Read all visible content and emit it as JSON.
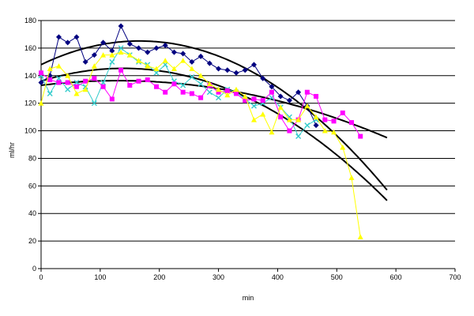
{
  "chart_data": {
    "type": "line",
    "xlabel": "min",
    "ylabel": "ml/hr",
    "xlim": [
      0,
      700
    ],
    "ylim": [
      0,
      180
    ],
    "x_ticks": [
      "0",
      "100",
      "200",
      "300",
      "400",
      "500",
      "600",
      "700"
    ],
    "y_ticks": [
      "0",
      "20",
      "40",
      "60",
      "80",
      "100",
      "120",
      "140",
      "160",
      "180"
    ],
    "grid": "horizontal",
    "legend": "none",
    "series": [
      {
        "color": "#000080",
        "marker": "diamond",
        "points": [
          [
            0,
            135
          ],
          [
            15,
            140
          ],
          [
            30,
            168
          ],
          [
            45,
            164
          ],
          [
            60,
            168
          ],
          [
            75,
            150
          ],
          [
            90,
            155
          ],
          [
            105,
            164
          ],
          [
            120,
            158
          ],
          [
            135,
            176
          ],
          [
            150,
            163
          ],
          [
            165,
            160
          ],
          [
            180,
            157
          ],
          [
            195,
            160
          ],
          [
            210,
            162
          ],
          [
            225,
            157
          ],
          [
            240,
            156
          ],
          [
            255,
            150
          ],
          [
            270,
            154
          ],
          [
            285,
            149
          ],
          [
            300,
            145
          ],
          [
            315,
            144
          ],
          [
            330,
            142
          ],
          [
            345,
            144
          ],
          [
            360,
            148
          ],
          [
            375,
            138
          ],
          [
            390,
            132
          ],
          [
            405,
            125
          ],
          [
            420,
            122
          ],
          [
            435,
            128
          ],
          [
            450,
            118
          ],
          [
            465,
            104
          ]
        ]
      },
      {
        "color": "#33CCCC",
        "marker": "x",
        "points": [
          [
            0,
            140
          ],
          [
            15,
            127
          ],
          [
            30,
            138
          ],
          [
            45,
            130
          ],
          [
            60,
            135
          ],
          [
            75,
            132
          ],
          [
            90,
            120
          ],
          [
            105,
            135
          ],
          [
            120,
            150
          ],
          [
            135,
            160
          ],
          [
            150,
            155
          ],
          [
            165,
            150
          ],
          [
            180,
            148
          ],
          [
            195,
            142
          ],
          [
            210,
            148
          ],
          [
            225,
            136
          ],
          [
            240,
            133
          ],
          [
            255,
            139
          ],
          [
            270,
            134
          ],
          [
            285,
            128
          ],
          [
            300,
            124
          ],
          [
            315,
            130
          ],
          [
            330,
            128
          ],
          [
            345,
            123
          ],
          [
            360,
            118
          ],
          [
            375,
            120
          ],
          [
            390,
            124
          ],
          [
            405,
            117
          ],
          [
            420,
            110
          ],
          [
            435,
            96
          ],
          [
            450,
            104
          ],
          [
            465,
            108
          ]
        ]
      },
      {
        "color": "#FF00FF",
        "marker": "square",
        "points": [
          [
            0,
            142
          ],
          [
            15,
            137
          ],
          [
            30,
            135
          ],
          [
            45,
            135
          ],
          [
            60,
            132
          ],
          [
            75,
            136
          ],
          [
            90,
            138
          ],
          [
            105,
            132
          ],
          [
            120,
            123
          ],
          [
            135,
            144
          ],
          [
            150,
            133
          ],
          [
            165,
            136
          ],
          [
            180,
            137
          ],
          [
            195,
            132
          ],
          [
            210,
            128
          ],
          [
            225,
            134
          ],
          [
            240,
            128
          ],
          [
            255,
            127
          ],
          [
            270,
            124
          ],
          [
            285,
            133
          ],
          [
            300,
            128
          ],
          [
            315,
            129
          ],
          [
            330,
            127
          ],
          [
            345,
            122
          ],
          [
            360,
            123
          ],
          [
            375,
            122
          ],
          [
            390,
            128
          ],
          [
            405,
            110
          ],
          [
            420,
            100
          ],
          [
            435,
            108
          ],
          [
            450,
            128
          ],
          [
            465,
            125
          ],
          [
            480,
            108
          ],
          [
            495,
            107
          ],
          [
            510,
            113
          ],
          [
            525,
            106
          ],
          [
            540,
            96
          ]
        ]
      },
      {
        "color": "#FFFF00",
        "marker": "triangle",
        "points": [
          [
            0,
            120
          ],
          [
            15,
            145
          ],
          [
            30,
            147
          ],
          [
            45,
            140
          ],
          [
            60,
            127
          ],
          [
            75,
            130
          ],
          [
            90,
            147
          ],
          [
            105,
            155
          ],
          [
            120,
            155
          ],
          [
            135,
            157
          ],
          [
            150,
            155
          ],
          [
            165,
            151
          ],
          [
            180,
            147
          ],
          [
            195,
            145
          ],
          [
            210,
            151
          ],
          [
            225,
            145
          ],
          [
            240,
            151
          ],
          [
            255,
            145
          ],
          [
            270,
            140
          ],
          [
            285,
            134
          ],
          [
            300,
            130
          ],
          [
            315,
            126
          ],
          [
            330,
            130
          ],
          [
            345,
            125
          ],
          [
            360,
            108
          ],
          [
            375,
            112
          ],
          [
            390,
            99
          ],
          [
            405,
            117
          ],
          [
            420,
            108
          ],
          [
            435,
            108
          ],
          [
            450,
            118
          ],
          [
            465,
            110
          ],
          [
            480,
            100
          ],
          [
            495,
            99
          ],
          [
            510,
            88
          ],
          [
            525,
            66
          ],
          [
            540,
            23
          ]
        ]
      }
    ],
    "trendlines": [
      {
        "color": "#000000",
        "coefficients": [
          148,
          0.206,
          -0.000618
        ],
        "x_range": [
          0,
          585
        ]
      },
      {
        "color": "#000000",
        "coefficients": [
          136,
          0.134,
          -0.000482
        ],
        "x_range": [
          0,
          585
        ]
      },
      {
        "color": "#000000",
        "coefficients": [
          133,
          0.052,
          -0.0002
        ],
        "x_range": [
          0,
          585
        ]
      }
    ]
  }
}
